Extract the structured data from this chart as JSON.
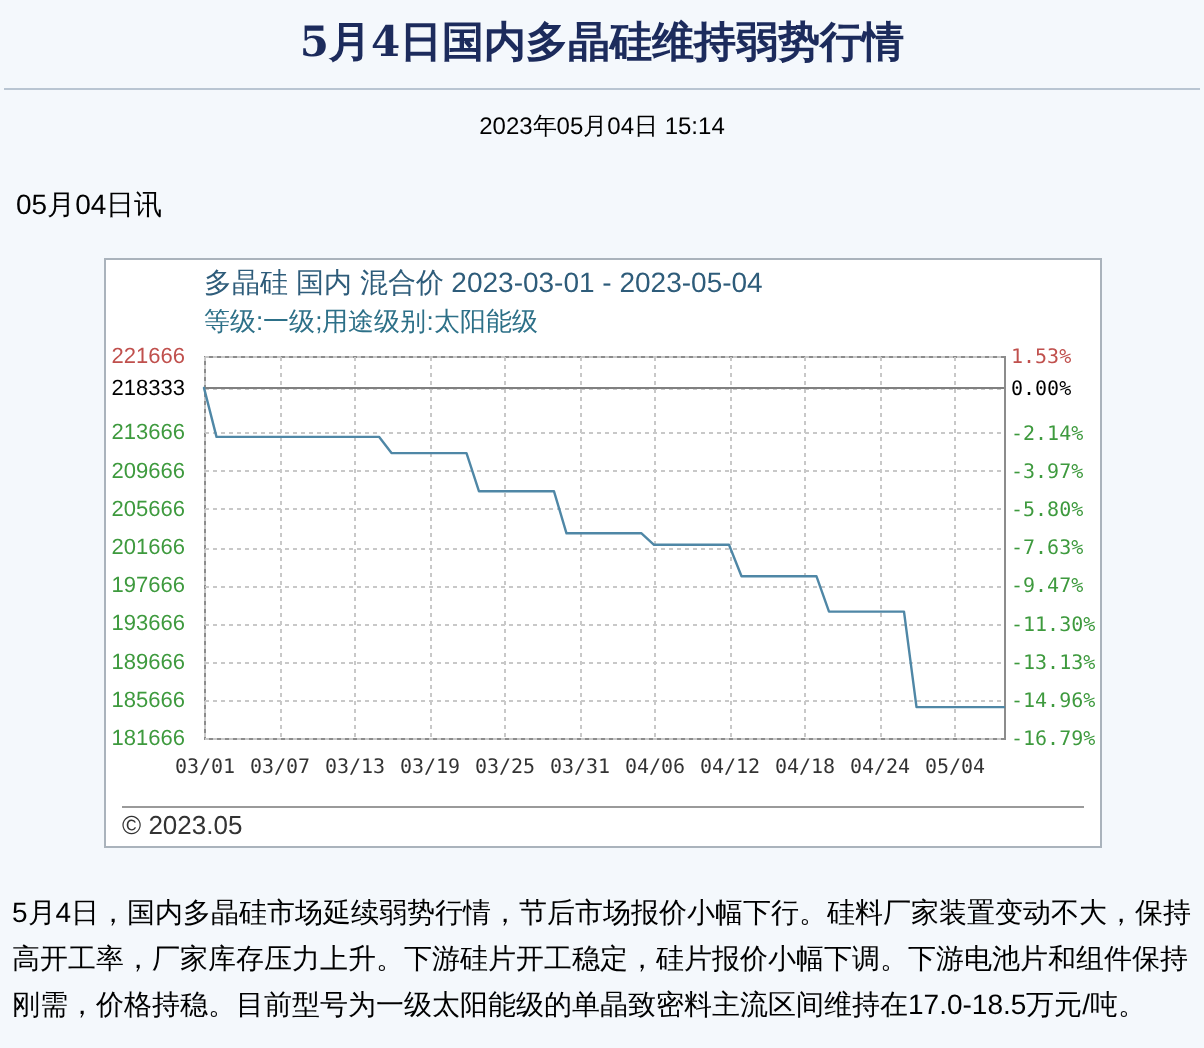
{
  "chart_data": {
    "type": "line",
    "title": "多晶硅 国内 混合价 2023-03-01 - 2023-05-04",
    "subtitle": "等级:一级;用途级别:太阳能级",
    "annotations": [
      "5月4日国内多晶硅维持弱势行情",
      "2023年05月04日 15:14",
      "05月04日讯",
      "© 2023.05",
      "5月4日，国内多晶硅市场延续弱势行情，节后市场报价小幅下行。硅料厂家装置变动不大，保持高开工率，厂家库存压力上升。下游硅片开工稳定，硅片报价小幅下调。下游电池片和组件保持刚需，价格持稳。目前型号为一级太阳能级的单晶致密料主流区间维持在17.0-18.5万元/吨。"
    ],
    "x": [
      "2023-03-01",
      "2023-03-02",
      "2023-03-15",
      "2023-03-16",
      "2023-03-22",
      "2023-03-23",
      "2023-03-29",
      "2023-03-30",
      "2023-04-05",
      "2023-04-06",
      "2023-04-12",
      "2023-04-13",
      "2023-04-19",
      "2023-04-20",
      "2023-04-26",
      "2023-04-27",
      "2023-05-04"
    ],
    "series": [
      {
        "color": "#4f87a6",
        "values": [
          218333,
          213200,
          213200,
          211500,
          211500,
          207500,
          207500,
          203100,
          203100,
          201900,
          201900,
          198600,
          198600,
          194900,
          194900,
          184900,
          184900
        ]
      }
    ],
    "xlim": [
      "2023-03-01",
      "2023-05-04"
    ],
    "xticks": [
      {
        "value": "2023-03-01",
        "label": "03/01"
      },
      {
        "value": "2023-03-07",
        "label": "03/07"
      },
      {
        "value": "2023-03-13",
        "label": "03/13"
      },
      {
        "value": "2023-03-19",
        "label": "03/19"
      },
      {
        "value": "2023-03-25",
        "label": "03/25"
      },
      {
        "value": "2023-03-31",
        "label": "03/31"
      },
      {
        "value": "2023-04-06",
        "label": "04/06"
      },
      {
        "value": "2023-04-12",
        "label": "04/12"
      },
      {
        "value": "2023-04-18",
        "label": "04/18"
      },
      {
        "value": "2023-04-24",
        "label": "04/24"
      },
      {
        "value": "2023-04-30",
        "label": "05/04"
      }
    ],
    "ylim": [
      181666,
      221666
    ],
    "yticks": [
      221666,
      218333,
      213666,
      209666,
      205666,
      201666,
      197666,
      193666,
      189666,
      185666,
      181666
    ],
    "y2lim": [
      -16.79,
      1.53
    ],
    "y2ticks": [
      {
        "value": 1.53,
        "label": "1.53%"
      },
      {
        "value": 0,
        "label": "0.00%"
      },
      {
        "value": -2.14,
        "label": "-2.14%"
      },
      {
        "value": -3.97,
        "label": "-3.97%"
      },
      {
        "value": -5.8,
        "label": "-5.80%"
      },
      {
        "value": -7.63,
        "label": "-7.63%"
      },
      {
        "value": -9.47,
        "label": "-9.47%"
      },
      {
        "value": -11.3,
        "label": "-11.30%"
      },
      {
        "value": -13.13,
        "label": "-13.13%"
      },
      {
        "value": -14.96,
        "label": "-14.96%"
      },
      {
        "value": -16.79,
        "label": "-16.79%"
      }
    ],
    "ref_lines": [
      {
        "axis": "y2",
        "value": 0,
        "color": "#808080"
      }
    ],
    "grid": true
  }
}
